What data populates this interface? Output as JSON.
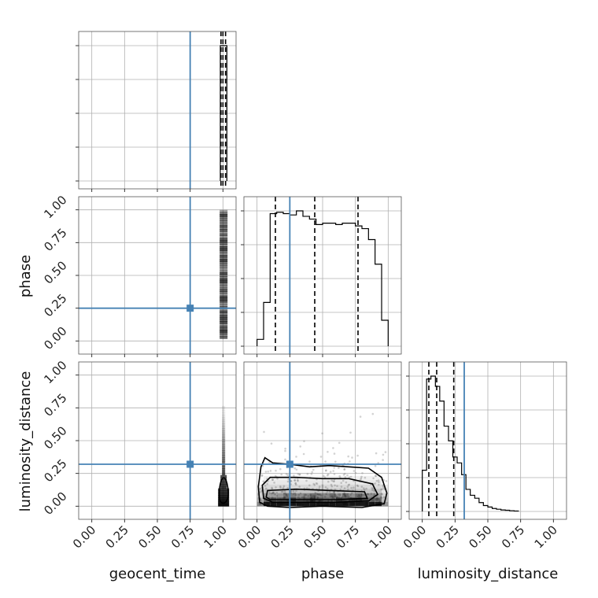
{
  "chart_data": {
    "type": "corner",
    "parameters": [
      "geocent_time",
      "phase",
      "luminosity_distance"
    ],
    "axis_range": [
      -0.1,
      1.1
    ],
    "ticks": [
      0.0,
      0.25,
      0.5,
      0.75,
      1.0
    ],
    "tick_labels": [
      "0.00",
      "0.25",
      "0.50",
      "0.75",
      "1.00"
    ],
    "truths": {
      "geocent_time": 0.75,
      "phase": 0.25,
      "luminosity_distance": 0.32
    },
    "grid": true,
    "colors": {
      "truth": "#4682b4",
      "histogram": "#000000",
      "grid": "#b0b0b0"
    },
    "histograms": {
      "geocent_time": {
        "bins": [
          0.98,
          1.0,
          1.03
        ],
        "heights": [
          1.0,
          1.0
        ],
        "quantiles": [
          0.985,
          1.0,
          1.02
        ]
      },
      "phase": {
        "bins": [
          0.0,
          0.05,
          0.1,
          0.15,
          0.2,
          0.25,
          0.3,
          0.35,
          0.4,
          0.45,
          0.5,
          0.55,
          0.6,
          0.65,
          0.7,
          0.75,
          0.8,
          0.85,
          0.9,
          0.95,
          1.0
        ],
        "heights": [
          0.05,
          0.32,
          0.97,
          0.98,
          0.97,
          0.96,
          0.99,
          0.95,
          0.93,
          0.89,
          0.9,
          0.9,
          0.89,
          0.9,
          0.9,
          0.88,
          0.86,
          0.78,
          0.6,
          0.19
        ],
        "quantiles": [
          0.14,
          0.44,
          0.77
        ]
      },
      "luminosity_distance": {
        "bins": [
          0.0,
          0.033,
          0.066,
          0.1,
          0.133,
          0.166,
          0.2,
          0.233,
          0.266,
          0.3,
          0.333,
          0.366,
          0.4,
          0.433,
          0.466,
          0.5,
          0.533,
          0.566,
          0.6,
          0.633,
          0.666,
          0.7,
          0.733
        ],
        "heights": [
          0.28,
          0.9,
          0.92,
          0.85,
          0.75,
          0.58,
          0.48,
          0.37,
          0.33,
          0.25,
          0.15,
          0.11,
          0.09,
          0.06,
          0.04,
          0.03,
          0.02,
          0.015,
          0.01,
          0.008,
          0.005,
          0.003
        ],
        "quantiles": [
          0.05,
          0.11,
          0.24
        ]
      }
    },
    "panels": [
      {
        "row": 0,
        "col": 0,
        "kind": "hist",
        "param": "geocent_time"
      },
      {
        "row": 1,
        "col": 0,
        "kind": "2d",
        "x": "geocent_time",
        "y": "phase"
      },
      {
        "row": 1,
        "col": 1,
        "kind": "hist",
        "param": "phase"
      },
      {
        "row": 2,
        "col": 0,
        "kind": "2d",
        "x": "geocent_time",
        "y": "luminosity_distance"
      },
      {
        "row": 2,
        "col": 1,
        "kind": "2d",
        "x": "phase",
        "y": "luminosity_distance"
      },
      {
        "row": 2,
        "col": 2,
        "kind": "hist",
        "param": "luminosity_distance"
      }
    ]
  },
  "labels": {
    "x_geocent_time": "geocent_time",
    "x_phase": "phase",
    "x_luminosity_distance": "luminosity_distance",
    "y_phase": "phase",
    "y_luminosity_distance": "luminosity_distance"
  }
}
